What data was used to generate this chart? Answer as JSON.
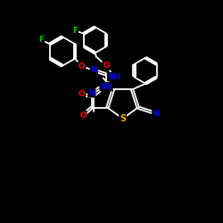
{
  "background_color": "#000000",
  "atom_colors": {
    "C": "#ffffff",
    "N": "#0000ff",
    "O": "#ff0000",
    "S": "#ffaa00",
    "F": "#00cc00",
    "H": "#ffffff"
  },
  "bond_color": "#ffffff",
  "title": "",
  "figsize": [
    2.5,
    2.5
  ],
  "dpi": 100,
  "xlim": [
    0,
    10
  ],
  "ylim": [
    0,
    10
  ]
}
